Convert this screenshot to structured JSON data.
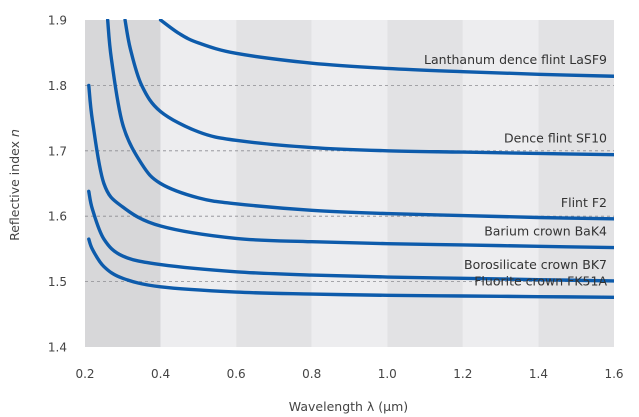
{
  "chart_data": {
    "type": "line",
    "xlabel": "Wavelength λ (µm)",
    "ylabel_prefix": "Reflective index ",
    "ylabel_symbol": "n",
    "xlim": [
      0.2,
      1.6
    ],
    "ylim": [
      1.4,
      1.9
    ],
    "xticks": [
      "0.2",
      "0.4",
      "0.6",
      "0.8",
      "1.0",
      "1.2",
      "1.4",
      "1.6"
    ],
    "yticks": [
      "1.4",
      "1.5",
      "1.6",
      "1.7",
      "1.8",
      "1.9"
    ],
    "grid": "horizontal dashed at 1.5, 1.6, 1.7, 1.8",
    "background_bands": [
      {
        "from": 0.2,
        "to": 0.4,
        "color": "#d7d7d9"
      },
      {
        "from": 0.4,
        "to": 0.6,
        "color": "#ededef"
      },
      {
        "from": 0.6,
        "to": 0.8,
        "color": "#e2e2e4"
      },
      {
        "from": 0.8,
        "to": 1.0,
        "color": "#ededef"
      },
      {
        "from": 1.0,
        "to": 1.2,
        "color": "#e2e2e4"
      },
      {
        "from": 1.2,
        "to": 1.4,
        "color": "#ededef"
      },
      {
        "from": 1.4,
        "to": 1.6,
        "color": "#e2e2e4"
      }
    ],
    "line_color": "#0d5bab",
    "series": [
      {
        "name": "Lanthanum dence flint LaSF9",
        "x": [
          0.4,
          0.45,
          0.5,
          0.6,
          0.8,
          1.0,
          1.2,
          1.4,
          1.6
        ],
        "y": [
          1.9,
          1.879,
          1.865,
          1.849,
          1.834,
          1.826,
          1.821,
          1.817,
          1.814
        ]
      },
      {
        "name": "Dence flint SF10",
        "x": [
          0.306,
          0.32,
          0.35,
          0.4,
          0.5,
          0.6,
          0.8,
          1.0,
          1.2,
          1.4,
          1.6
        ],
        "y": [
          1.9,
          1.856,
          1.8,
          1.76,
          1.729,
          1.716,
          1.705,
          1.7,
          1.698,
          1.696,
          1.694
        ]
      },
      {
        "name": "Flint F2",
        "x": [
          0.26,
          0.27,
          0.3,
          0.35,
          0.4,
          0.5,
          0.6,
          0.8,
          1.0,
          1.2,
          1.4,
          1.6
        ],
        "y": [
          1.9,
          1.84,
          1.74,
          1.68,
          1.65,
          1.628,
          1.619,
          1.609,
          1.604,
          1.601,
          1.598,
          1.596
        ]
      },
      {
        "name": "Barium crown BaK4",
        "x": [
          0.21,
          0.22,
          0.25,
          0.3,
          0.4,
          0.6,
          0.8,
          1.0,
          1.2,
          1.4,
          1.6
        ],
        "y": [
          1.8,
          1.745,
          1.65,
          1.614,
          1.585,
          1.566,
          1.561,
          1.558,
          1.556,
          1.554,
          1.552
        ]
      },
      {
        "name": "Borosilicate crown BK7",
        "x": [
          0.21,
          0.22,
          0.25,
          0.3,
          0.4,
          0.6,
          0.8,
          1.0,
          1.2,
          1.4,
          1.6
        ],
        "y": [
          1.638,
          1.61,
          1.565,
          1.539,
          1.526,
          1.515,
          1.51,
          1.507,
          1.505,
          1.503,
          1.501
        ]
      },
      {
        "name": "Fluorite crown FK51A",
        "x": [
          0.21,
          0.22,
          0.25,
          0.3,
          0.4,
          0.6,
          0.8,
          1.0,
          1.2,
          1.4,
          1.6
        ],
        "y": [
          1.565,
          1.549,
          1.523,
          1.505,
          1.492,
          1.484,
          1.481,
          1.479,
          1.478,
          1.477,
          1.476
        ]
      }
    ]
  }
}
